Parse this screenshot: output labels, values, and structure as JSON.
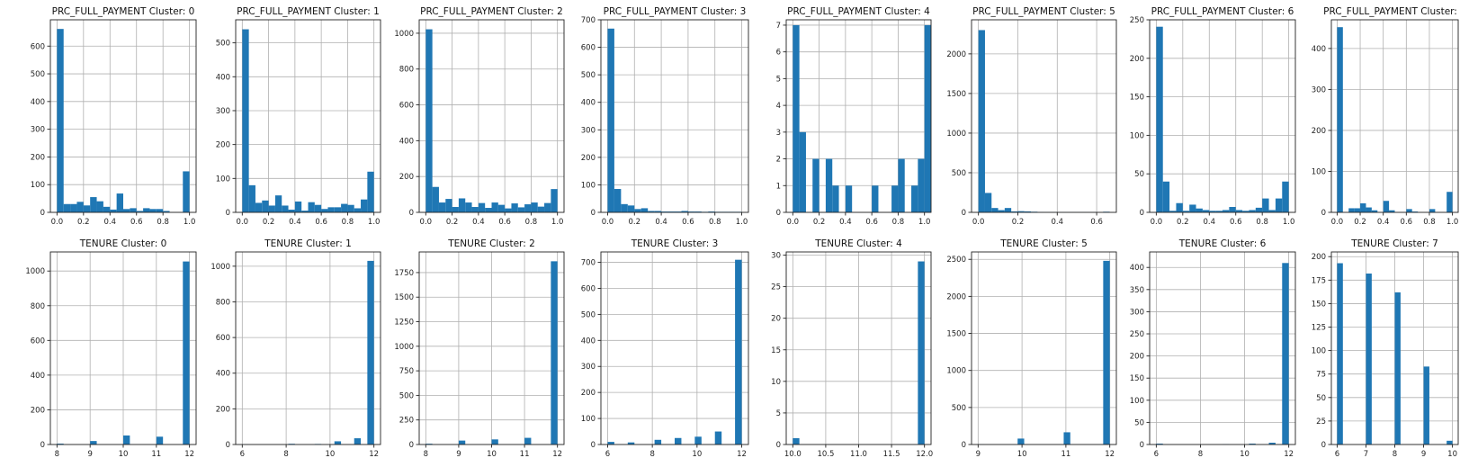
{
  "bar_color": "#1f77b4",
  "chart_data": [
    {
      "type": "bar",
      "title": "PRC_FULL_PAYMENT Cluster: 0",
      "xlim": [
        -0.05,
        1.05
      ],
      "ylim": [
        0,
        695
      ],
      "xticks": [
        0,
        0.2,
        0.4,
        0.6,
        0.8,
        1.0
      ],
      "xtick_labels": [
        "0.0",
        "0.2",
        "0.4",
        "0.6",
        "0.8",
        "1.0"
      ],
      "yticks": [
        0,
        100,
        200,
        300,
        400,
        500,
        600
      ],
      "bins": {
        "start": 0,
        "width": 0.05,
        "values": [
          662,
          30,
          30,
          38,
          25,
          55,
          40,
          20,
          10,
          68,
          12,
          15,
          5,
          15,
          12,
          12,
          5,
          0,
          0,
          148
        ]
      }
    },
    {
      "type": "bar",
      "title": "PRC_FULL_PAYMENT Cluster: 1",
      "xlim": [
        -0.05,
        1.05
      ],
      "ylim": [
        0,
        568
      ],
      "xticks": [
        0,
        0.2,
        0.4,
        0.6,
        0.8,
        1.0
      ],
      "xtick_labels": [
        "0.0",
        "0.2",
        "0.4",
        "0.6",
        "0.8",
        "1.0"
      ],
      "yticks": [
        0,
        100,
        200,
        300,
        400,
        500
      ],
      "bins": {
        "start": 0,
        "width": 0.05,
        "values": [
          540,
          80,
          28,
          35,
          20,
          50,
          20,
          8,
          32,
          5,
          30,
          22,
          10,
          15,
          15,
          25,
          22,
          12,
          38,
          120
        ]
      }
    },
    {
      "type": "bar",
      "title": "PRC_FULL_PAYMENT Cluster: 2",
      "xlim": [
        -0.05,
        1.05
      ],
      "ylim": [
        0,
        1075
      ],
      "xticks": [
        0,
        0.2,
        0.4,
        0.6,
        0.8,
        1.0
      ],
      "xtick_labels": [
        "0.0",
        "0.2",
        "0.4",
        "0.6",
        "0.8",
        "1.0"
      ],
      "yticks": [
        0,
        200,
        400,
        600,
        800,
        1000
      ],
      "bins": {
        "start": 0,
        "width": 0.05,
        "values": [
          1022,
          142,
          55,
          75,
          30,
          78,
          55,
          30,
          52,
          25,
          55,
          42,
          22,
          50,
          28,
          45,
          55,
          32,
          52,
          130
        ]
      }
    },
    {
      "type": "bar",
      "title": "PRC_FULL_PAYMENT Cluster: 3",
      "xlim": [
        -0.05,
        1.05
      ],
      "ylim": [
        0,
        700
      ],
      "xticks": [
        0,
        0.2,
        0.4,
        0.6,
        0.8,
        1.0
      ],
      "xtick_labels": [
        "0.0",
        "0.2",
        "0.4",
        "0.6",
        "0.8",
        "1.0"
      ],
      "yticks": [
        0,
        100,
        200,
        300,
        400,
        500,
        600,
        700
      ],
      "bins": {
        "start": 0,
        "width": 0.05,
        "values": [
          668,
          85,
          30,
          25,
          12,
          15,
          5,
          5,
          3,
          3,
          3,
          5,
          3,
          3,
          2,
          3,
          2,
          2,
          2,
          2
        ]
      }
    },
    {
      "type": "bar",
      "title": "PRC_FULL_PAYMENT Cluster: 4",
      "xlim": [
        -0.05,
        1.05
      ],
      "ylim": [
        0,
        7.2
      ],
      "xticks": [
        0,
        0.2,
        0.4,
        0.6,
        0.8,
        1.0
      ],
      "xtick_labels": [
        "0.0",
        "0.2",
        "0.4",
        "0.6",
        "0.8",
        "1.0"
      ],
      "yticks": [
        0,
        1,
        2,
        3,
        4,
        5,
        6,
        7
      ],
      "bins": {
        "start": 0,
        "width": 0.05,
        "values": [
          7,
          3,
          0,
          2,
          0,
          2,
          1,
          0,
          1,
          0,
          0,
          0,
          1,
          0,
          0,
          1,
          2,
          0,
          1,
          2,
          7
        ]
      }
    },
    {
      "type": "bar",
      "title": "PRC_FULL_PAYMENT Cluster: 5",
      "xlim": [
        -0.035,
        0.7
      ],
      "ylim": [
        0,
        2430
      ],
      "xticks": [
        0,
        0.2,
        0.4,
        0.6
      ],
      "xtick_labels": [
        "0.0",
        "0.2",
        "0.4",
        "0.6"
      ],
      "yticks": [
        0,
        500,
        1000,
        1500,
        2000
      ],
      "bins": {
        "start": 0,
        "width": 0.0333,
        "values": [
          2300,
          245,
          55,
          28,
          55,
          12,
          15,
          12,
          8,
          5,
          3,
          3,
          2,
          2,
          2,
          2,
          2,
          2,
          1,
          8
        ]
      }
    },
    {
      "type": "bar",
      "title": "PRC_FULL_PAYMENT Cluster: 6",
      "xlim": [
        -0.05,
        1.05
      ],
      "ylim": [
        0,
        250
      ],
      "xticks": [
        0,
        0.2,
        0.4,
        0.6,
        0.8,
        1.0
      ],
      "xtick_labels": [
        "0.0",
        "0.2",
        "0.4",
        "0.6",
        "0.8",
        "1.0"
      ],
      "yticks": [
        0,
        50,
        100,
        150,
        200,
        250
      ],
      "bins": {
        "start": 0,
        "width": 0.05,
        "values": [
          241,
          40,
          2,
          12,
          2,
          10,
          5,
          3,
          2,
          2,
          3,
          7,
          3,
          2,
          3,
          6,
          18,
          3,
          18,
          40
        ]
      }
    },
    {
      "type": "bar",
      "title": "PRC_FULL_PAYMENT Cluster: 7",
      "xlim": [
        -0.05,
        1.05
      ],
      "ylim": [
        0,
        470
      ],
      "xticks": [
        0,
        0.2,
        0.4,
        0.6,
        0.8,
        1.0
      ],
      "xtick_labels": [
        "0.0",
        "0.2",
        "0.4",
        "0.6",
        "0.8",
        "1.0"
      ],
      "yticks": [
        0,
        100,
        200,
        300,
        400
      ],
      "bins": {
        "start": 0,
        "width": 0.05,
        "values": [
          452,
          0,
          10,
          10,
          22,
          12,
          5,
          0,
          28,
          5,
          0,
          0,
          8,
          2,
          0,
          0,
          8,
          0,
          0,
          50
        ]
      }
    },
    {
      "type": "bar",
      "title": "TENURE Cluster: 0",
      "xlim": [
        7.8,
        12.2
      ],
      "ylim": [
        0,
        1110
      ],
      "xticks": [
        8,
        9,
        10,
        11,
        12
      ],
      "xtick_labels": [
        "8",
        "9",
        "10",
        "11",
        "12"
      ],
      "yticks": [
        0,
        200,
        400,
        600,
        800,
        1000
      ],
      "bins": {
        "start": 8,
        "width": 0.2,
        "values": [
          5,
          0,
          0,
          0,
          0,
          20,
          0,
          0,
          0,
          0,
          52,
          0,
          0,
          0,
          0,
          45,
          0,
          0,
          0,
          1055
        ]
      }
    },
    {
      "type": "bar",
      "title": "TENURE Cluster: 1",
      "xlim": [
        5.7,
        12.3
      ],
      "ylim": [
        0,
        1080
      ],
      "xticks": [
        6,
        8,
        10,
        12
      ],
      "xtick_labels": [
        "6",
        "8",
        "10",
        "12"
      ],
      "yticks": [
        0,
        200,
        400,
        600,
        800,
        1000
      ],
      "bins": {
        "start": 6,
        "width": 0.3,
        "values": [
          1,
          0,
          0,
          0,
          0,
          0,
          0,
          4,
          0,
          0,
          0,
          3,
          0,
          0,
          18,
          0,
          0,
          35,
          0,
          1030
        ]
      }
    },
    {
      "type": "bar",
      "title": "TENURE Cluster: 2",
      "xlim": [
        7.8,
        12.2
      ],
      "ylim": [
        0,
        1960
      ],
      "xticks": [
        8,
        9,
        10,
        11,
        12
      ],
      "xtick_labels": [
        "8",
        "9",
        "10",
        "11",
        "12"
      ],
      "yticks": [
        0,
        250,
        500,
        750,
        1000,
        1250,
        1500,
        1750
      ],
      "bins": {
        "start": 8,
        "width": 0.2,
        "values": [
          8,
          0,
          0,
          0,
          0,
          40,
          0,
          0,
          0,
          0,
          52,
          0,
          0,
          0,
          0,
          68,
          0,
          0,
          0,
          1865
        ]
      }
    },
    {
      "type": "bar",
      "title": "TENURE Cluster: 3",
      "xlim": [
        5.7,
        12.3
      ],
      "ylim": [
        0,
        740
      ],
      "xticks": [
        6,
        8,
        10,
        12
      ],
      "xtick_labels": [
        "6",
        "8",
        "10",
        "12"
      ],
      "yticks": [
        0,
        100,
        200,
        300,
        400,
        500,
        600,
        700
      ],
      "bins": {
        "start": 6,
        "width": 0.3,
        "values": [
          10,
          0,
          0,
          8,
          0,
          0,
          0,
          18,
          0,
          0,
          25,
          0,
          0,
          30,
          0,
          0,
          50,
          0,
          0,
          710
        ]
      }
    },
    {
      "type": "bar",
      "title": "TENURE Cluster: 4",
      "xlim": [
        9.9,
        12.1
      ],
      "ylim": [
        0,
        30.5
      ],
      "xticks": [
        10,
        10.5,
        11,
        11.5,
        12
      ],
      "xtick_labels": [
        "10.0",
        "10.5",
        "11.0",
        "11.5",
        "12.0"
      ],
      "yticks": [
        0,
        5,
        10,
        15,
        20,
        25,
        30
      ],
      "bins": {
        "start": 10,
        "width": 0.1,
        "values": [
          1,
          0,
          0,
          0,
          0,
          0,
          0,
          0,
          0,
          0,
          0,
          0,
          0,
          0,
          0,
          0,
          0,
          0,
          0,
          29
        ]
      }
    },
    {
      "type": "bar",
      "title": "TENURE Cluster: 5",
      "xlim": [
        8.85,
        12.15
      ],
      "ylim": [
        0,
        2600
      ],
      "xticks": [
        9,
        10,
        11,
        12
      ],
      "xtick_labels": [
        "9",
        "10",
        "11",
        "12"
      ],
      "yticks": [
        0,
        500,
        1000,
        1500,
        2000,
        2500
      ],
      "bins": {
        "start": 9,
        "width": 0.15,
        "values": [
          3,
          0,
          0,
          0,
          0,
          0,
          80,
          0,
          0,
          0,
          0,
          0,
          0,
          165,
          0,
          0,
          0,
          0,
          0,
          2480
        ]
      }
    },
    {
      "type": "bar",
      "title": "TENURE Cluster: 6",
      "xlim": [
        5.7,
        12.3
      ],
      "ylim": [
        0,
        435
      ],
      "xticks": [
        6,
        8,
        10,
        12
      ],
      "xtick_labels": [
        "6",
        "8",
        "10",
        "12"
      ],
      "yticks": [
        0,
        50,
        100,
        150,
        200,
        250,
        300,
        350,
        400
      ],
      "bins": {
        "start": 6,
        "width": 0.3,
        "values": [
          2,
          0,
          0,
          0,
          0,
          0,
          0,
          0,
          0,
          0,
          1,
          0,
          0,
          0,
          2,
          0,
          0,
          4,
          0,
          410
        ]
      }
    },
    {
      "type": "bar",
      "title": "TENURE Cluster: 7",
      "xlim": [
        5.8,
        10.2
      ],
      "ylim": [
        0,
        205
      ],
      "xticks": [
        6,
        7,
        8,
        9,
        10
      ],
      "xtick_labels": [
        "6",
        "7",
        "8",
        "9",
        "10"
      ],
      "yticks": [
        0,
        25,
        50,
        75,
        100,
        125,
        150,
        175,
        200
      ],
      "bins": {
        "start": 6,
        "width": 0.2,
        "values": [
          193,
          0,
          0,
          0,
          0,
          182,
          0,
          0,
          0,
          0,
          162,
          0,
          0,
          0,
          0,
          83,
          0,
          0,
          0,
          4
        ]
      }
    }
  ]
}
